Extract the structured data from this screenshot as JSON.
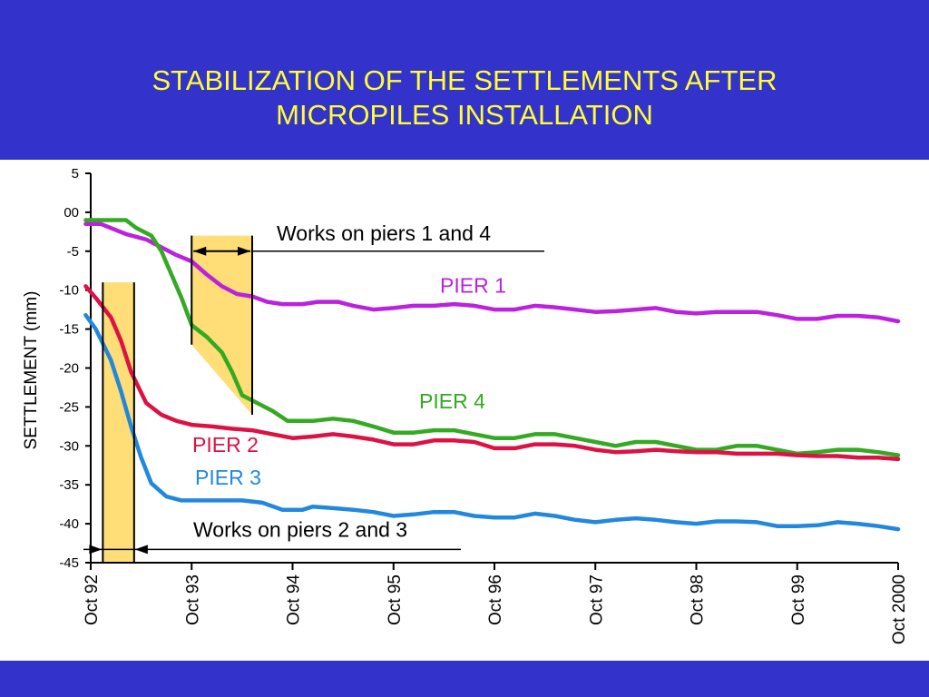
{
  "slide": {
    "title_line1": "STABILIZATION OF THE SETTLEMENTS AFTER",
    "title_line2": "MICROPILES INSTALLATION",
    "background_color": "#3333cc",
    "title_color": "#ffff33"
  },
  "chart_data": {
    "type": "line",
    "title": "",
    "xlabel": "",
    "ylabel": "SETTLEMENT  (mm)",
    "ylim": [
      -45,
      5
    ],
    "xlim": [
      0,
      8
    ],
    "yticks": [
      5,
      0,
      -5,
      -10,
      -15,
      -20,
      -25,
      -30,
      -35,
      -40,
      -45
    ],
    "ytick_labels": [
      "5",
      "00",
      "-5",
      "-10",
      "-15",
      "-20",
      "-25",
      "-30",
      "-35",
      "-40",
      "-45"
    ],
    "xticks": [
      0,
      1,
      2,
      3,
      4,
      5,
      6,
      7,
      8
    ],
    "xtick_labels": [
      "Oct 92",
      "Oct 93",
      "Oct 94",
      "Oct 95",
      "Oct 96",
      "Oct 97",
      "Oct 98",
      "Oct 99",
      "Oct 2000"
    ],
    "grid": false,
    "series": [
      {
        "name": "PIER 1",
        "color": "#bb22dd",
        "points": [
          [
            -0.05,
            -1.5
          ],
          [
            0.1,
            -1.5
          ],
          [
            0.35,
            -2.8
          ],
          [
            0.55,
            -3.5
          ],
          [
            0.7,
            -4.5
          ],
          [
            0.85,
            -5.5
          ],
          [
            1.0,
            -6.3
          ],
          [
            1.15,
            -8.0
          ],
          [
            1.3,
            -9.5
          ],
          [
            1.45,
            -10.5
          ],
          [
            1.6,
            -10.8
          ],
          [
            1.75,
            -11.5
          ],
          [
            1.9,
            -11.8
          ],
          [
            2.1,
            -11.8
          ],
          [
            2.25,
            -11.5
          ],
          [
            2.45,
            -11.5
          ],
          [
            2.6,
            -12.0
          ],
          [
            2.8,
            -12.5
          ],
          [
            3.0,
            -12.3
          ],
          [
            3.2,
            -12.0
          ],
          [
            3.4,
            -12.0
          ],
          [
            3.6,
            -11.8
          ],
          [
            3.8,
            -12.0
          ],
          [
            4.0,
            -12.5
          ],
          [
            4.2,
            -12.5
          ],
          [
            4.4,
            -12.0
          ],
          [
            4.6,
            -12.2
          ],
          [
            4.8,
            -12.5
          ],
          [
            5.0,
            -12.8
          ],
          [
            5.2,
            -12.7
          ],
          [
            5.4,
            -12.5
          ],
          [
            5.6,
            -12.3
          ],
          [
            5.8,
            -12.8
          ],
          [
            6.0,
            -13.0
          ],
          [
            6.2,
            -12.8
          ],
          [
            6.4,
            -12.8
          ],
          [
            6.6,
            -12.8
          ],
          [
            6.8,
            -13.2
          ],
          [
            7.0,
            -13.7
          ],
          [
            7.2,
            -13.7
          ],
          [
            7.4,
            -13.3
          ],
          [
            7.6,
            -13.3
          ],
          [
            7.8,
            -13.5
          ],
          [
            8.0,
            -14.0
          ]
        ]
      },
      {
        "name": "PIER 4",
        "color": "#33aa22",
        "points": [
          [
            -0.05,
            -1.0
          ],
          [
            0.1,
            -1.0
          ],
          [
            0.35,
            -1.0
          ],
          [
            0.45,
            -2.0
          ],
          [
            0.6,
            -3.0
          ],
          [
            0.7,
            -5.0
          ],
          [
            0.8,
            -8.0
          ],
          [
            0.9,
            -11.0
          ],
          [
            1.0,
            -14.5
          ],
          [
            1.15,
            -16.0
          ],
          [
            1.3,
            -18.0
          ],
          [
            1.4,
            -20.5
          ],
          [
            1.5,
            -23.5
          ],
          [
            1.65,
            -24.5
          ],
          [
            1.8,
            -25.5
          ],
          [
            1.95,
            -26.8
          ],
          [
            2.2,
            -26.8
          ],
          [
            2.4,
            -26.5
          ],
          [
            2.6,
            -26.8
          ],
          [
            2.8,
            -27.5
          ],
          [
            3.0,
            -28.3
          ],
          [
            3.2,
            -28.3
          ],
          [
            3.4,
            -28.0
          ],
          [
            3.6,
            -28.0
          ],
          [
            3.8,
            -28.5
          ],
          [
            4.0,
            -29.0
          ],
          [
            4.2,
            -29.0
          ],
          [
            4.4,
            -28.5
          ],
          [
            4.6,
            -28.5
          ],
          [
            4.8,
            -29.0
          ],
          [
            5.0,
            -29.5
          ],
          [
            5.2,
            -30.0
          ],
          [
            5.4,
            -29.5
          ],
          [
            5.6,
            -29.5
          ],
          [
            5.8,
            -30.0
          ],
          [
            6.0,
            -30.5
          ],
          [
            6.2,
            -30.5
          ],
          [
            6.4,
            -30.0
          ],
          [
            6.6,
            -30.0
          ],
          [
            6.8,
            -30.5
          ],
          [
            7.0,
            -31.0
          ],
          [
            7.2,
            -30.8
          ],
          [
            7.4,
            -30.5
          ],
          [
            7.6,
            -30.5
          ],
          [
            7.8,
            -30.8
          ],
          [
            8.0,
            -31.2
          ]
        ]
      },
      {
        "name": "PIER 2",
        "color": "#dd1144",
        "points": [
          [
            -0.05,
            -9.5
          ],
          [
            0.05,
            -11.0
          ],
          [
            0.2,
            -13.5
          ],
          [
            0.3,
            -16.5
          ],
          [
            0.4,
            -20.5
          ],
          [
            0.55,
            -24.5
          ],
          [
            0.7,
            -26.0
          ],
          [
            0.85,
            -26.8
          ],
          [
            1.0,
            -27.3
          ],
          [
            1.2,
            -27.5
          ],
          [
            1.4,
            -27.8
          ],
          [
            1.6,
            -28.0
          ],
          [
            1.8,
            -28.5
          ],
          [
            2.0,
            -29.0
          ],
          [
            2.2,
            -28.8
          ],
          [
            2.4,
            -28.5
          ],
          [
            2.6,
            -28.8
          ],
          [
            2.8,
            -29.2
          ],
          [
            3.0,
            -29.8
          ],
          [
            3.2,
            -29.8
          ],
          [
            3.4,
            -29.3
          ],
          [
            3.6,
            -29.3
          ],
          [
            3.8,
            -29.5
          ],
          [
            4.0,
            -30.3
          ],
          [
            4.2,
            -30.3
          ],
          [
            4.4,
            -29.8
          ],
          [
            4.6,
            -29.8
          ],
          [
            4.8,
            -30.0
          ],
          [
            5.0,
            -30.5
          ],
          [
            5.2,
            -30.8
          ],
          [
            5.4,
            -30.7
          ],
          [
            5.6,
            -30.5
          ],
          [
            5.8,
            -30.7
          ],
          [
            6.0,
            -30.8
          ],
          [
            6.2,
            -30.8
          ],
          [
            6.4,
            -31.0
          ],
          [
            6.6,
            -31.0
          ],
          [
            6.8,
            -31.0
          ],
          [
            7.0,
            -31.2
          ],
          [
            7.2,
            -31.3
          ],
          [
            7.4,
            -31.3
          ],
          [
            7.6,
            -31.5
          ],
          [
            7.8,
            -31.5
          ],
          [
            8.0,
            -31.7
          ]
        ]
      },
      {
        "name": "PIER 3",
        "color": "#2288dd",
        "points": [
          [
            -0.05,
            -13.2
          ],
          [
            0.05,
            -15.0
          ],
          [
            0.2,
            -19.0
          ],
          [
            0.3,
            -23.0
          ],
          [
            0.4,
            -27.5
          ],
          [
            0.5,
            -31.5
          ],
          [
            0.6,
            -34.8
          ],
          [
            0.75,
            -36.5
          ],
          [
            0.9,
            -37.0
          ],
          [
            1.1,
            -37.0
          ],
          [
            1.3,
            -37.0
          ],
          [
            1.5,
            -37.0
          ],
          [
            1.7,
            -37.3
          ],
          [
            1.9,
            -38.2
          ],
          [
            2.1,
            -38.2
          ],
          [
            2.2,
            -37.8
          ],
          [
            2.4,
            -38.0
          ],
          [
            2.6,
            -38.2
          ],
          [
            2.8,
            -38.5
          ],
          [
            3.0,
            -39.0
          ],
          [
            3.2,
            -38.8
          ],
          [
            3.4,
            -38.5
          ],
          [
            3.6,
            -38.5
          ],
          [
            3.8,
            -39.0
          ],
          [
            4.0,
            -39.2
          ],
          [
            4.2,
            -39.2
          ],
          [
            4.4,
            -38.7
          ],
          [
            4.6,
            -39.0
          ],
          [
            4.8,
            -39.5
          ],
          [
            5.0,
            -39.8
          ],
          [
            5.2,
            -39.5
          ],
          [
            5.4,
            -39.3
          ],
          [
            5.6,
            -39.5
          ],
          [
            5.8,
            -39.8
          ],
          [
            6.0,
            -40.0
          ],
          [
            6.2,
            -39.7
          ],
          [
            6.4,
            -39.7
          ],
          [
            6.6,
            -39.8
          ],
          [
            6.8,
            -40.3
          ],
          [
            7.0,
            -40.3
          ],
          [
            7.2,
            -40.2
          ],
          [
            7.4,
            -39.8
          ],
          [
            7.6,
            -40.0
          ],
          [
            7.8,
            -40.3
          ],
          [
            8.0,
            -40.7
          ]
        ]
      }
    ],
    "annotations": [
      {
        "text": "Works on piers 1 and 4",
        "x_start": 1.0,
        "x_end": 1.6,
        "color": "#ffdd77"
      },
      {
        "text": "Works on piers 2 and 3",
        "x_start": 0.12,
        "x_end": 0.43,
        "color": "#ffdd77"
      }
    ]
  }
}
